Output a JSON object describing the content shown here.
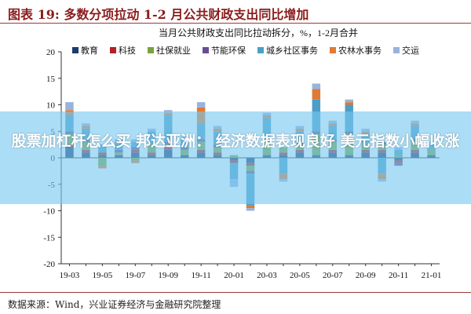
{
  "header": {
    "title": "图表 19: 多数分项拉动 1-2 月公共财政支出同比增加"
  },
  "overlay": {
    "headline": "股票加杠杆怎么买 邦达亚洲： 经济数据表现良好 美元指数小幅收涨"
  },
  "footer": {
    "source": "数据来源：Wind，兴业证券经济与金融研究院整理"
  },
  "colors": {
    "header_text": "#8b1c1c",
    "rule": "#9a3a3a",
    "overlay": "#78c8f0"
  },
  "chart_data": {
    "type": "bar",
    "stacked": true,
    "title": "当月公共财政支出同比拉动拆分，%，1-2月合并",
    "ylim": [
      -20,
      20
    ],
    "yticks": [
      "20",
      "15",
      "10",
      "5",
      "0",
      "-5",
      "-10",
      "-15",
      "-20"
    ],
    "xtick_labels": [
      "19-03",
      "19-05",
      "19-07",
      "19-09",
      "19-11",
      "20-01",
      "20-03",
      "20-05",
      "20-07",
      "20-09",
      "20-11",
      "21-01"
    ],
    "categories": [
      "19-03",
      "19-04",
      "19-05",
      "19-06",
      "19-07",
      "19-08",
      "19-09",
      "19-10",
      "19-11",
      "19-12",
      "20-01",
      "20-03",
      "20-04",
      "20-05",
      "20-06",
      "20-07",
      "20-08",
      "20-09",
      "20-10",
      "20-11",
      "20-12",
      "21-01",
      "21-02"
    ],
    "legend_position": "top",
    "grid": false,
    "series": [
      {
        "name": "教育",
        "color": "#1f3a6e",
        "values": [
          2.0,
          1.0,
          0.5,
          0.5,
          1.0,
          0.5,
          1.5,
          0.5,
          1.0,
          0.5,
          -0.5,
          -1.0,
          0.5,
          0.5,
          1.0,
          0.5,
          1.0,
          0.5,
          1.0,
          1.0,
          -0.5,
          1.0,
          0.5
        ]
      },
      {
        "name": "科技",
        "color": "#b32025",
        "values": [
          0.5,
          0.5,
          0.5,
          0.0,
          0.5,
          0.5,
          0.5,
          0.0,
          0.5,
          0.5,
          -0.5,
          -0.5,
          0.0,
          0.5,
          0.5,
          0.0,
          0.5,
          0.0,
          0.5,
          0.5,
          -0.5,
          0.5,
          0.0
        ]
      },
      {
        "name": "社保就业",
        "color": "#7aa23c",
        "values": [
          2.0,
          1.5,
          -1.5,
          0.5,
          -0.5,
          1.5,
          0.5,
          1.0,
          1.5,
          1.0,
          0.5,
          -1.0,
          2.5,
          1.0,
          1.0,
          4.0,
          1.5,
          4.0,
          1.0,
          1.0,
          0.5,
          1.5,
          1.0
        ]
      },
      {
        "name": "节能环保",
        "color": "#6a4c93",
        "values": [
          0.5,
          0.5,
          0.0,
          0.5,
          0.5,
          0.0,
          0.5,
          0.5,
          0.5,
          0.5,
          0.0,
          -0.5,
          0.5,
          0.0,
          0.5,
          0.5,
          0.5,
          0.5,
          0.0,
          0.5,
          -0.5,
          0.5,
          0.0
        ]
      },
      {
        "name": "城乡社区事务",
        "color": "#4a9ec8",
        "values": [
          3.0,
          2.0,
          1.5,
          1.5,
          1.0,
          2.5,
          5.0,
          1.5,
          3.0,
          2.5,
          -3.0,
          -6.0,
          4.0,
          -3.0,
          2.0,
          6.0,
          2.5,
          5.0,
          2.0,
          -3.0,
          1.0,
          2.5,
          1.0
        ]
      },
      {
        "name": "农林水事务",
        "color": "#e07a34",
        "values": [
          1.0,
          0.5,
          -0.5,
          0.0,
          -0.5,
          0.0,
          0.5,
          0.0,
          3.0,
          0.5,
          0.0,
          -0.5,
          0.5,
          -1.0,
          0.5,
          2.0,
          0.5,
          0.5,
          0.5,
          -1.0,
          0.0,
          0.5,
          0.0
        ]
      },
      {
        "name": "交运",
        "color": "#98b4dc",
        "values": [
          1.5,
          0.5,
          0.0,
          0.5,
          0.5,
          0.5,
          0.5,
          0.5,
          1.0,
          0.5,
          -1.5,
          -0.5,
          0.5,
          -0.5,
          0.5,
          1.0,
          0.5,
          0.5,
          0.5,
          -0.5,
          0.5,
          0.5,
          0.5
        ]
      }
    ]
  }
}
